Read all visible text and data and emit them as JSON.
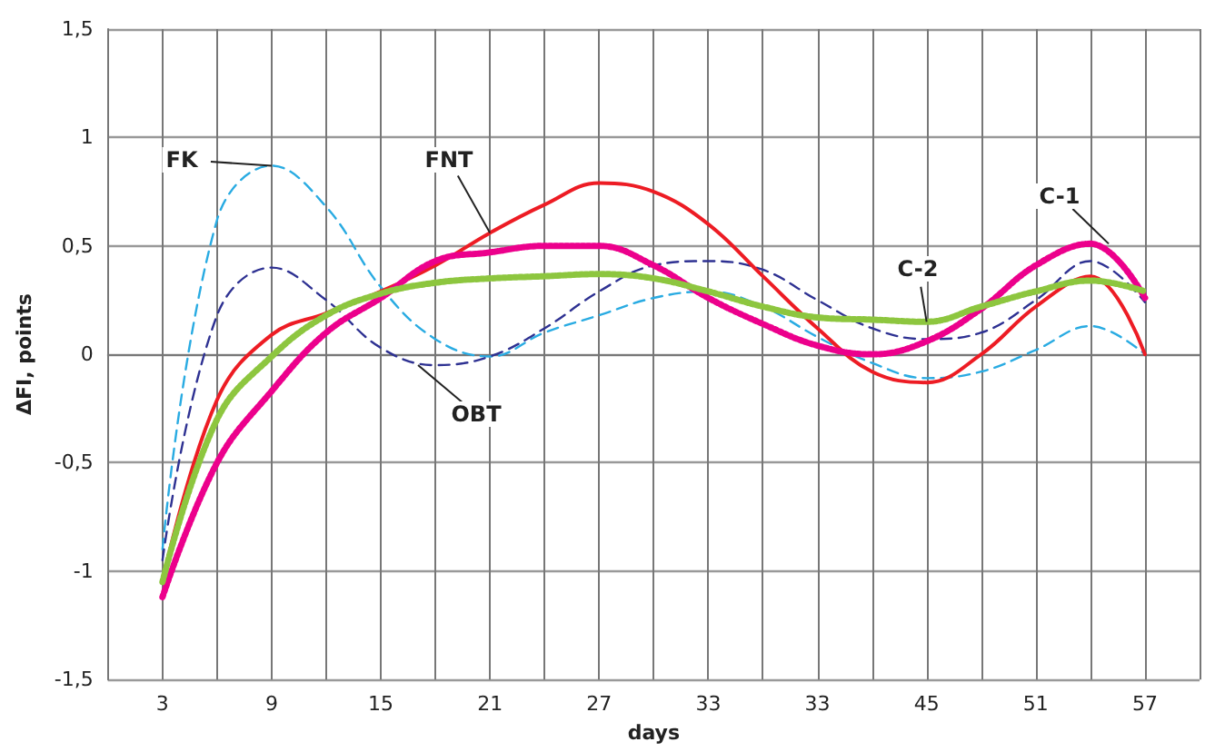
{
  "chart_data": {
    "type": "line",
    "xlabel": "days",
    "ylabel": "ΔFI, points",
    "categories": [
      null,
      "3",
      null,
      "9",
      null,
      "15",
      null,
      "21",
      null,
      "27",
      null,
      "33",
      null,
      "33",
      null,
      "45",
      null,
      "51",
      null,
      "57",
      null
    ],
    "ylim": [
      -1.5,
      1.5
    ],
    "yticks": [
      {
        "value": -1.5,
        "label": "-1,5"
      },
      {
        "value": -1,
        "label": "-1"
      },
      {
        "value": -0.5,
        "label": "-0,5"
      },
      {
        "value": 0,
        "label": "0"
      },
      {
        "value": 0.5,
        "label": "0,5"
      },
      {
        "value": 1,
        "label": "1"
      },
      {
        "value": 1.5,
        "label": "1,5"
      }
    ],
    "grid": true,
    "marker": "none",
    "series": [
      {
        "color": "#29abe2",
        "line_style": "dashed",
        "values": [
          null,
          -0.9,
          0.62,
          0.87,
          0.68,
          0.31,
          0.07,
          -0.01,
          0.1,
          0.18,
          0.26,
          0.29,
          0.22,
          0.08,
          -0.04,
          -0.11,
          -0.08,
          0.02,
          0.13,
          0.0,
          null
        ]
      },
      {
        "color": "#2e3192",
        "line_style": "dashed",
        "values": [
          null,
          -0.95,
          0.18,
          0.4,
          0.25,
          0.03,
          -0.05,
          -0.01,
          0.12,
          0.29,
          0.41,
          0.43,
          0.39,
          0.25,
          0.12,
          0.07,
          0.1,
          0.25,
          0.43,
          0.24,
          null
        ]
      },
      {
        "color": "#ed1c24",
        "line_style": "solid",
        "values": [
          null,
          -1.05,
          -0.21,
          0.09,
          0.19,
          0.29,
          0.41,
          0.56,
          0.69,
          0.79,
          0.75,
          0.6,
          0.36,
          0.12,
          -0.08,
          -0.13,
          0.0,
          0.22,
          0.36,
          0.0,
          null
        ]
      },
      {
        "color": "#ec008c",
        "line_style": "dotted",
        "values": [
          null,
          -1.12,
          -0.5,
          -0.17,
          0.1,
          0.26,
          0.43,
          0.47,
          0.5,
          0.5,
          0.41,
          0.26,
          0.14,
          0.04,
          0.0,
          0.06,
          0.21,
          0.41,
          0.51,
          0.26,
          null
        ]
      },
      {
        "color": "#8dc63f",
        "line_style": "dotted",
        "values": [
          null,
          -1.05,
          -0.3,
          -0.01,
          0.18,
          0.28,
          0.33,
          0.35,
          0.36,
          0.37,
          0.35,
          0.29,
          0.22,
          0.17,
          0.16,
          0.15,
          0.22,
          0.29,
          0.34,
          0.29,
          null
        ]
      }
    ],
    "annotations": [
      {
        "text": "FK",
        "x": "9",
        "y": 0.87
      },
      {
        "text": "FNT",
        "x": "21",
        "y": 0.56
      },
      {
        "text": "OBT",
        "y": -0.05
      },
      {
        "text": "C-2",
        "x": "45",
        "y": 0.15
      },
      {
        "text": "C-1",
        "y": 0.51
      }
    ]
  }
}
